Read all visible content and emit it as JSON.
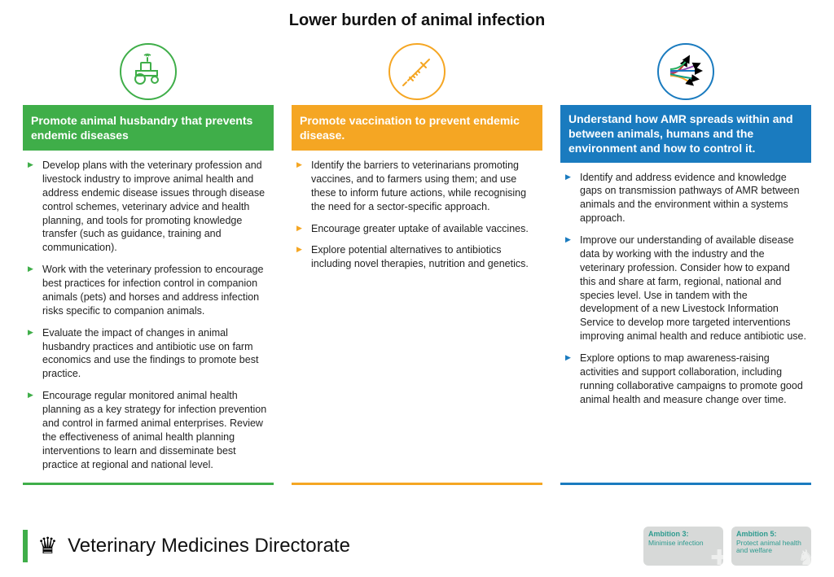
{
  "title": "Lower burden of animal infection",
  "colors": {
    "green": "#3fae49",
    "orange": "#f5a623",
    "blue": "#1a7bbf",
    "footer_bar": "#3fae49",
    "badge_accent": "#2d9b8f"
  },
  "columns": [
    {
      "icon": "tractor",
      "color": "#3fae49",
      "header": "Promote animal husbandry that prevents endemic diseases",
      "bullets": [
        "Develop plans with the veterinary profession and livestock industry to improve animal health and address endemic disease issues through disease control schemes, veterinary advice and health planning, and tools for promoting knowledge transfer (such as guidance, training and communication).",
        "Work with the veterinary profession to encourage best practices for infection control in companion animals (pets) and horses and address infection risks specific to companion animals.",
        "Evaluate the impact of changes in animal husbandry practices and antibiotic use on farm economics and use the findings to promote best practice.",
        "Encourage regular monitored animal health planning as a key strategy for infection prevention and control in farmed animal enterprises. Review the effectiveness of animal health planning interventions to learn and disseminate best practice at regional and national level."
      ]
    },
    {
      "icon": "syringe",
      "color": "#f5a623",
      "header": "Promote vaccination to prevent endemic disease.",
      "bullets": [
        "Identify the barriers to veterinarians promoting vaccines, and to farmers using them; and use these to inform future actions, while recognising the need for a sector-specific approach.",
        "Encourage greater uptake of available vaccines.",
        "Explore potential alternatives to antibiotics including novel therapies, nutrition and genetics."
      ]
    },
    {
      "icon": "arrows",
      "color": "#1a7bbf",
      "header": "Understand how AMR spreads within and between animals, humans and the environment and how to control it.",
      "bullets": [
        "Identify and address evidence and knowledge gaps on transmission pathways of AMR between animals and the environment within a systems approach.",
        "Improve our understanding of available disease data by working with the industry and the veterinary profession. Consider how to expand this and share at farm, regional, national and species level. Use in tandem with the development of a new Livestock Information Service to develop more targeted interventions improving animal health and reduce antibiotic use.",
        "Explore options to map awareness-raising activities and support collaboration, including running collaborative campaigns to promote good animal health and measure change over time."
      ]
    }
  ],
  "footer": {
    "org": "Veterinary Medicines Directorate"
  },
  "badges": [
    {
      "title": "Ambition 3:",
      "sub": "Minimise infection",
      "accent": "#2d9b8f",
      "deco": "✚"
    },
    {
      "title": "Ambition 5:",
      "sub": "Protect animal health and welfare",
      "accent": "#2d9b8f",
      "deco": "♞"
    }
  ],
  "arrow_colors": [
    "#c0392b",
    "#27ae60",
    "#8e44ad",
    "#1a7bbf",
    "#f5a623",
    "#16a085"
  ]
}
